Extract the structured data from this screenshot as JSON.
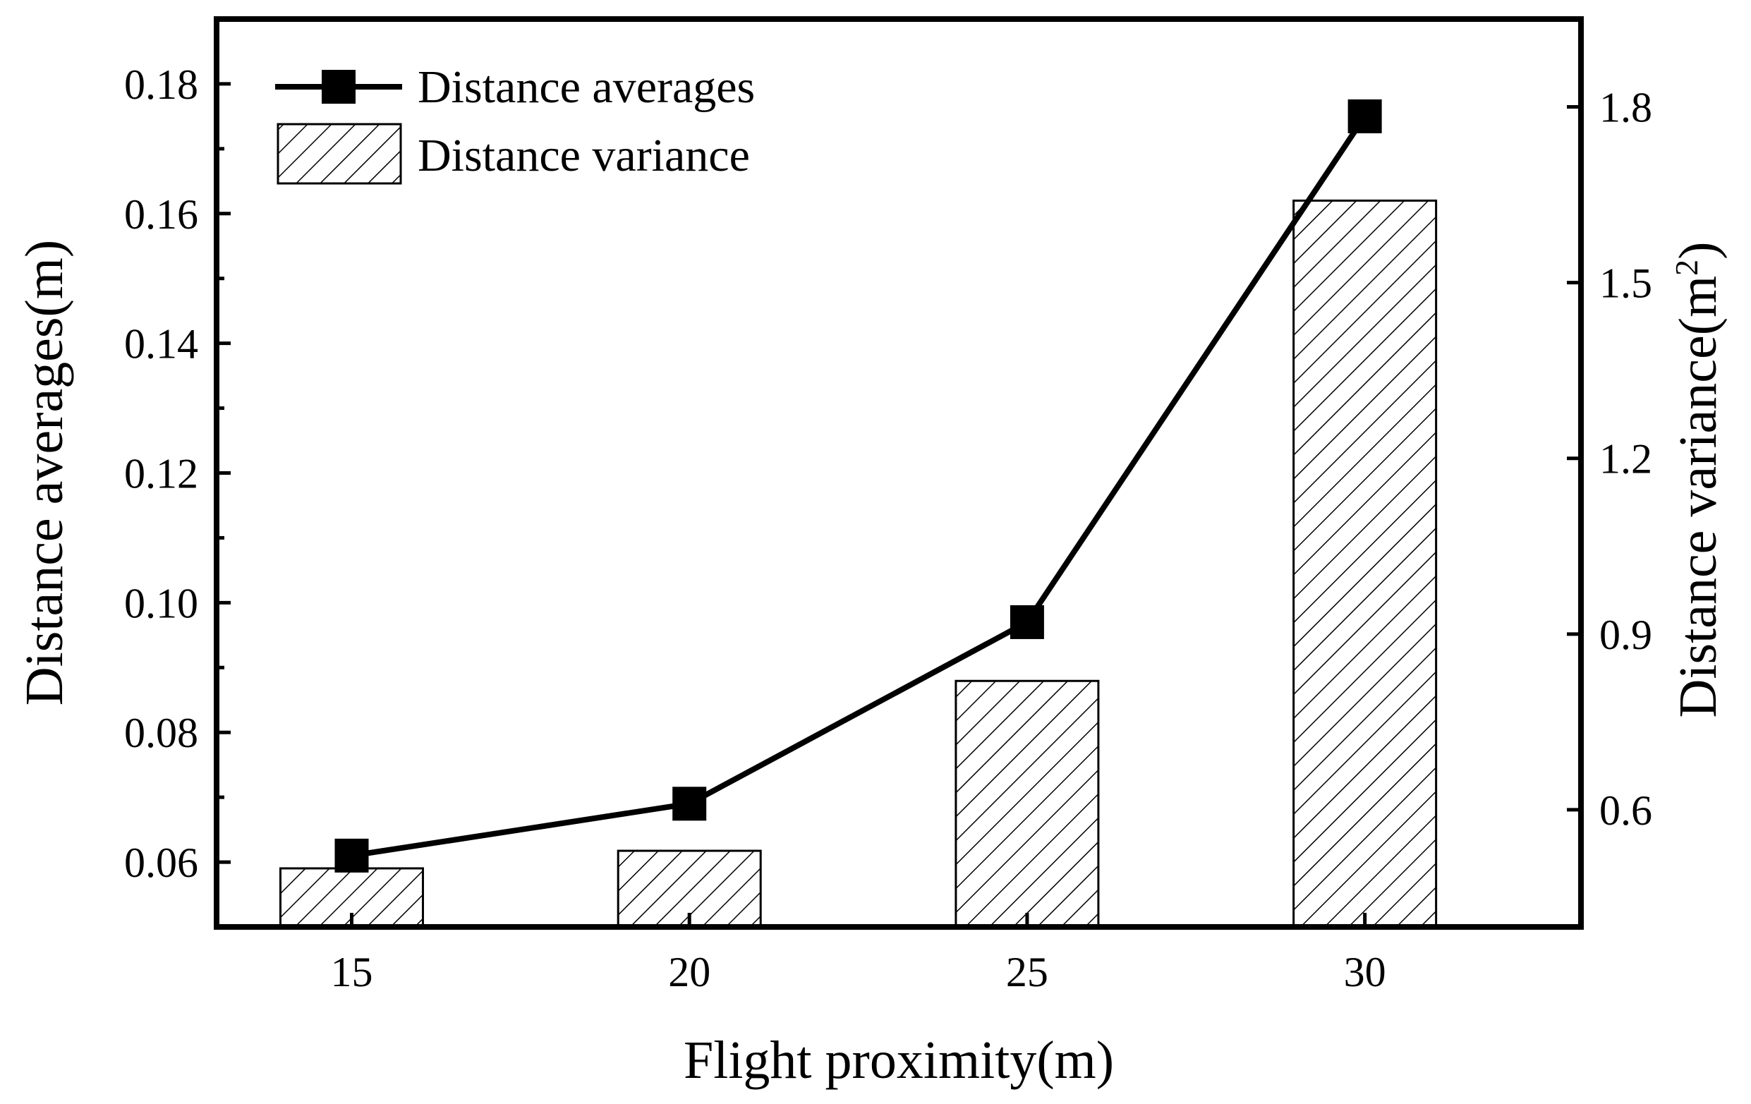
{
  "chart_data": {
    "type": "bar+line",
    "title": "",
    "xlabel": "Flight proximity(m)",
    "ylabel_left": "Distance averages(m)",
    "ylabel_right": "Distance variance(m²)",
    "ylabel_right_base": "Distance variance(m",
    "ylabel_right_sup": "2",
    "ylabel_right_close": ")",
    "categories": [
      "15",
      "20",
      "25",
      "30"
    ],
    "x_ticks": [
      15,
      20,
      25,
      30
    ],
    "xlim": [
      13.0,
      33.2
    ],
    "ylim_left": [
      0.05,
      0.19
    ],
    "ylim_right": [
      0.4,
      1.95
    ],
    "left_ticks": [
      0.06,
      0.08,
      0.1,
      0.12,
      0.14,
      0.16,
      0.18
    ],
    "left_tick_labels": [
      "0.06",
      "0.08",
      "0.10",
      "0.12",
      "0.14",
      "0.16",
      "0.18"
    ],
    "right_ticks": [
      0.6,
      0.9,
      1.2,
      1.5,
      1.8
    ],
    "right_tick_labels": [
      "0.6",
      "0.9",
      "1.2",
      "1.5",
      "1.8"
    ],
    "series": [
      {
        "name": "Distance averages",
        "kind": "line",
        "axis": "left",
        "marker": "square",
        "color": "#000000",
        "x": [
          15,
          20,
          25,
          30
        ],
        "values": [
          0.061,
          0.069,
          0.097,
          0.175
        ]
      },
      {
        "name": "Distance variance",
        "kind": "bar",
        "axis": "right",
        "pattern": "diagonal-hatch",
        "color": "#000000",
        "x": [
          15,
          20,
          25,
          30
        ],
        "values": [
          0.5,
          0.53,
          0.82,
          1.64
        ]
      }
    ],
    "legend": {
      "position": "top-left",
      "entries": [
        "Distance averages",
        "Distance variance"
      ]
    },
    "grid": false
  }
}
